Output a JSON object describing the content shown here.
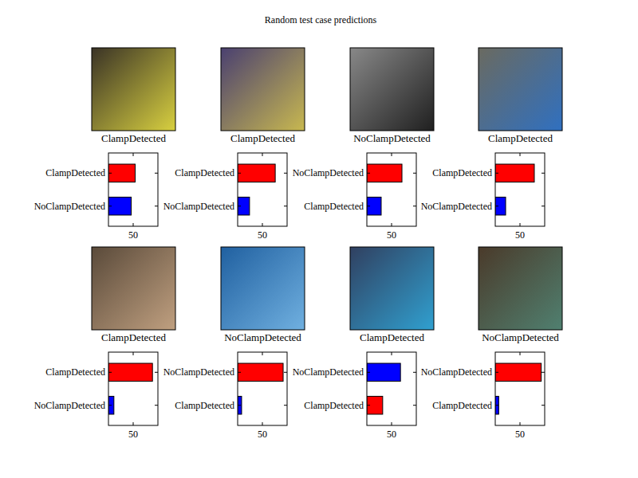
{
  "title": "Random test case predictions",
  "chart_data": [
    {
      "type": "bar",
      "orientation": "horizontal",
      "title": "ClampDetected",
      "categories": [
        "ClampDetected",
        "NoClampDetected"
      ],
      "values": [
        54,
        46
      ],
      "colors": [
        "#ff0000",
        "#0000ff"
      ],
      "xlim": [
        0,
        100
      ],
      "xticks": [
        50
      ]
    },
    {
      "type": "bar",
      "orientation": "horizontal",
      "title": "ClampDetected",
      "categories": [
        "ClampDetected",
        "NoClampDetected"
      ],
      "values": [
        76,
        24
      ],
      "colors": [
        "#ff0000",
        "#0000ff"
      ],
      "xlim": [
        0,
        100
      ],
      "xticks": [
        50
      ]
    },
    {
      "type": "bar",
      "orientation": "horizontal",
      "title": "NoClampDetected",
      "categories": [
        "NoClampDetected",
        "ClampDetected"
      ],
      "values": [
        71,
        29
      ],
      "colors": [
        "#ff0000",
        "#0000ff"
      ],
      "xlim": [
        0,
        100
      ],
      "xticks": [
        50
      ]
    },
    {
      "type": "bar",
      "orientation": "horizontal",
      "title": "ClampDetected",
      "categories": [
        "ClampDetected",
        "NoClampDetected"
      ],
      "values": [
        79,
        21
      ],
      "colors": [
        "#ff0000",
        "#0000ff"
      ],
      "xlim": [
        0,
        100
      ],
      "xticks": [
        50
      ]
    },
    {
      "type": "bar",
      "orientation": "horizontal",
      "title": "ClampDetected",
      "categories": [
        "ClampDetected",
        "NoClampDetected"
      ],
      "values": [
        89,
        11
      ],
      "colors": [
        "#ff0000",
        "#0000ff"
      ],
      "xlim": [
        0,
        100
      ],
      "xticks": [
        50
      ]
    },
    {
      "type": "bar",
      "orientation": "horizontal",
      "title": "NoClampDetected",
      "categories": [
        "NoClampDetected",
        "ClampDetected"
      ],
      "values": [
        92,
        8
      ],
      "colors": [
        "#ff0000",
        "#0000ff"
      ],
      "xlim": [
        0,
        100
      ],
      "xticks": [
        50
      ]
    },
    {
      "type": "bar",
      "orientation": "horizontal",
      "title": "ClampDetected",
      "categories": [
        "NoClampDetected",
        "ClampDetected"
      ],
      "values": [
        68,
        32
      ],
      "colors": [
        "#0000ff",
        "#ff0000"
      ],
      "xlim": [
        0,
        100
      ],
      "xticks": [
        50
      ]
    },
    {
      "type": "bar",
      "orientation": "horizontal",
      "title": "NoClampDetected",
      "categories": [
        "NoClampDetected",
        "ClampDetected"
      ],
      "values": [
        93,
        7
      ],
      "colors": [
        "#ff0000",
        "#0000ff"
      ],
      "xlim": [
        0,
        100
      ],
      "xticks": [
        50
      ]
    }
  ]
}
